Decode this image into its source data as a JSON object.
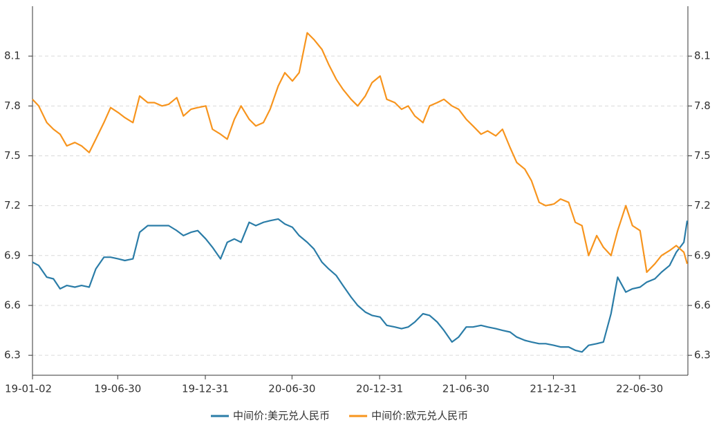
{
  "chart_data": {
    "type": "line",
    "x": [
      "19-01-02",
      "19-01-15",
      "19-02-01",
      "19-02-15",
      "19-03-01",
      "19-03-15",
      "19-04-01",
      "19-04-15",
      "19-05-01",
      "19-05-15",
      "19-06-01",
      "19-06-15",
      "19-07-01",
      "19-07-15",
      "19-08-01",
      "19-08-15",
      "19-09-01",
      "19-09-15",
      "19-10-01",
      "19-10-15",
      "19-11-01",
      "19-11-15",
      "19-12-01",
      "19-12-15",
      "20-01-01",
      "20-01-15",
      "20-02-01",
      "20-02-15",
      "20-03-01",
      "20-03-15",
      "20-04-01",
      "20-04-15",
      "20-05-01",
      "20-05-15",
      "20-06-01",
      "20-06-15",
      "20-07-01",
      "20-07-15",
      "20-08-01",
      "20-08-15",
      "20-09-01",
      "20-09-15",
      "20-10-01",
      "20-10-15",
      "20-11-01",
      "20-11-15",
      "20-12-01",
      "20-12-15",
      "21-01-01",
      "21-01-15",
      "21-02-01",
      "21-02-15",
      "21-03-01",
      "21-03-15",
      "21-04-01",
      "21-04-15",
      "21-05-01",
      "21-05-15",
      "21-06-01",
      "21-06-15",
      "21-07-01",
      "21-07-15",
      "21-08-01",
      "21-08-15",
      "21-09-01",
      "21-09-15",
      "21-10-01",
      "21-10-15",
      "21-11-01",
      "21-11-15",
      "21-12-01",
      "21-12-15",
      "22-01-01",
      "22-01-15",
      "22-02-01",
      "22-02-15",
      "22-03-01",
      "22-03-15",
      "22-04-01",
      "22-04-15",
      "22-05-01",
      "22-05-15",
      "22-06-01",
      "22-06-15",
      "22-07-01",
      "22-07-15",
      "22-08-01",
      "22-08-15",
      "22-09-01",
      "22-09-15",
      "22-10-01",
      "22-10-08"
    ],
    "series": [
      {
        "name": "中间价:美元兑人民币",
        "color": "#2a7ca7",
        "values": [
          6.86,
          6.84,
          6.77,
          6.76,
          6.7,
          6.72,
          6.71,
          6.72,
          6.71,
          6.82,
          6.89,
          6.89,
          6.88,
          6.87,
          6.88,
          7.04,
          7.08,
          7.08,
          7.08,
          7.08,
          7.05,
          7.02,
          7.04,
          7.05,
          7.0,
          6.95,
          6.88,
          6.98,
          7.0,
          6.98,
          7.1,
          7.08,
          7.1,
          7.11,
          7.12,
          7.09,
          7.07,
          7.02,
          6.98,
          6.94,
          6.86,
          6.82,
          6.78,
          6.72,
          6.65,
          6.6,
          6.56,
          6.54,
          6.53,
          6.48,
          6.47,
          6.46,
          6.47,
          6.5,
          6.55,
          6.54,
          6.5,
          6.45,
          6.38,
          6.41,
          6.47,
          6.47,
          6.48,
          6.47,
          6.46,
          6.45,
          6.44,
          6.41,
          6.39,
          6.38,
          6.37,
          6.37,
          6.36,
          6.35,
          6.35,
          6.33,
          6.32,
          6.36,
          6.37,
          6.38,
          6.55,
          6.77,
          6.68,
          6.7,
          6.71,
          6.74,
          6.76,
          6.8,
          6.84,
          6.92,
          6.98,
          7.11
        ]
      },
      {
        "name": "中间价:欧元兑人民币",
        "color": "#f7941d",
        "values": [
          7.84,
          7.8,
          7.7,
          7.66,
          7.63,
          7.56,
          7.58,
          7.56,
          7.52,
          7.6,
          7.7,
          7.79,
          7.76,
          7.73,
          7.7,
          7.86,
          7.82,
          7.82,
          7.8,
          7.81,
          7.85,
          7.74,
          7.78,
          7.79,
          7.8,
          7.66,
          7.63,
          7.6,
          7.72,
          7.8,
          7.72,
          7.68,
          7.7,
          7.78,
          7.92,
          8.0,
          7.95,
          8.0,
          8.24,
          8.2,
          8.14,
          8.05,
          7.96,
          7.9,
          7.84,
          7.8,
          7.86,
          7.94,
          7.98,
          7.84,
          7.82,
          7.78,
          7.8,
          7.74,
          7.7,
          7.8,
          7.82,
          7.84,
          7.8,
          7.78,
          7.72,
          7.68,
          7.63,
          7.65,
          7.62,
          7.66,
          7.55,
          7.46,
          7.42,
          7.35,
          7.22,
          7.2,
          7.21,
          7.24,
          7.22,
          7.1,
          7.08,
          6.9,
          7.02,
          6.95,
          6.9,
          7.05,
          7.2,
          7.08,
          7.05,
          6.8,
          6.85,
          6.9,
          6.93,
          6.96,
          6.92,
          6.85
        ]
      }
    ],
    "xlim": [
      "19-01-02",
      "22-10-08"
    ],
    "xticks": [
      "19-01-02",
      "19-06-30",
      "19-12-31",
      "20-06-30",
      "20-12-31",
      "21-06-30",
      "21-12-31",
      "22-06-30"
    ],
    "ylim": [
      6.18,
      8.4
    ],
    "yticks": [
      6.3,
      6.6,
      6.9,
      7.2,
      7.5,
      7.8,
      8.1
    ],
    "y2lim": [
      6.18,
      8.4
    ],
    "y2ticks": [
      6.3,
      6.6,
      6.9,
      7.2,
      7.5,
      7.8,
      8.1
    ],
    "grid": true,
    "legend": "bottom"
  }
}
